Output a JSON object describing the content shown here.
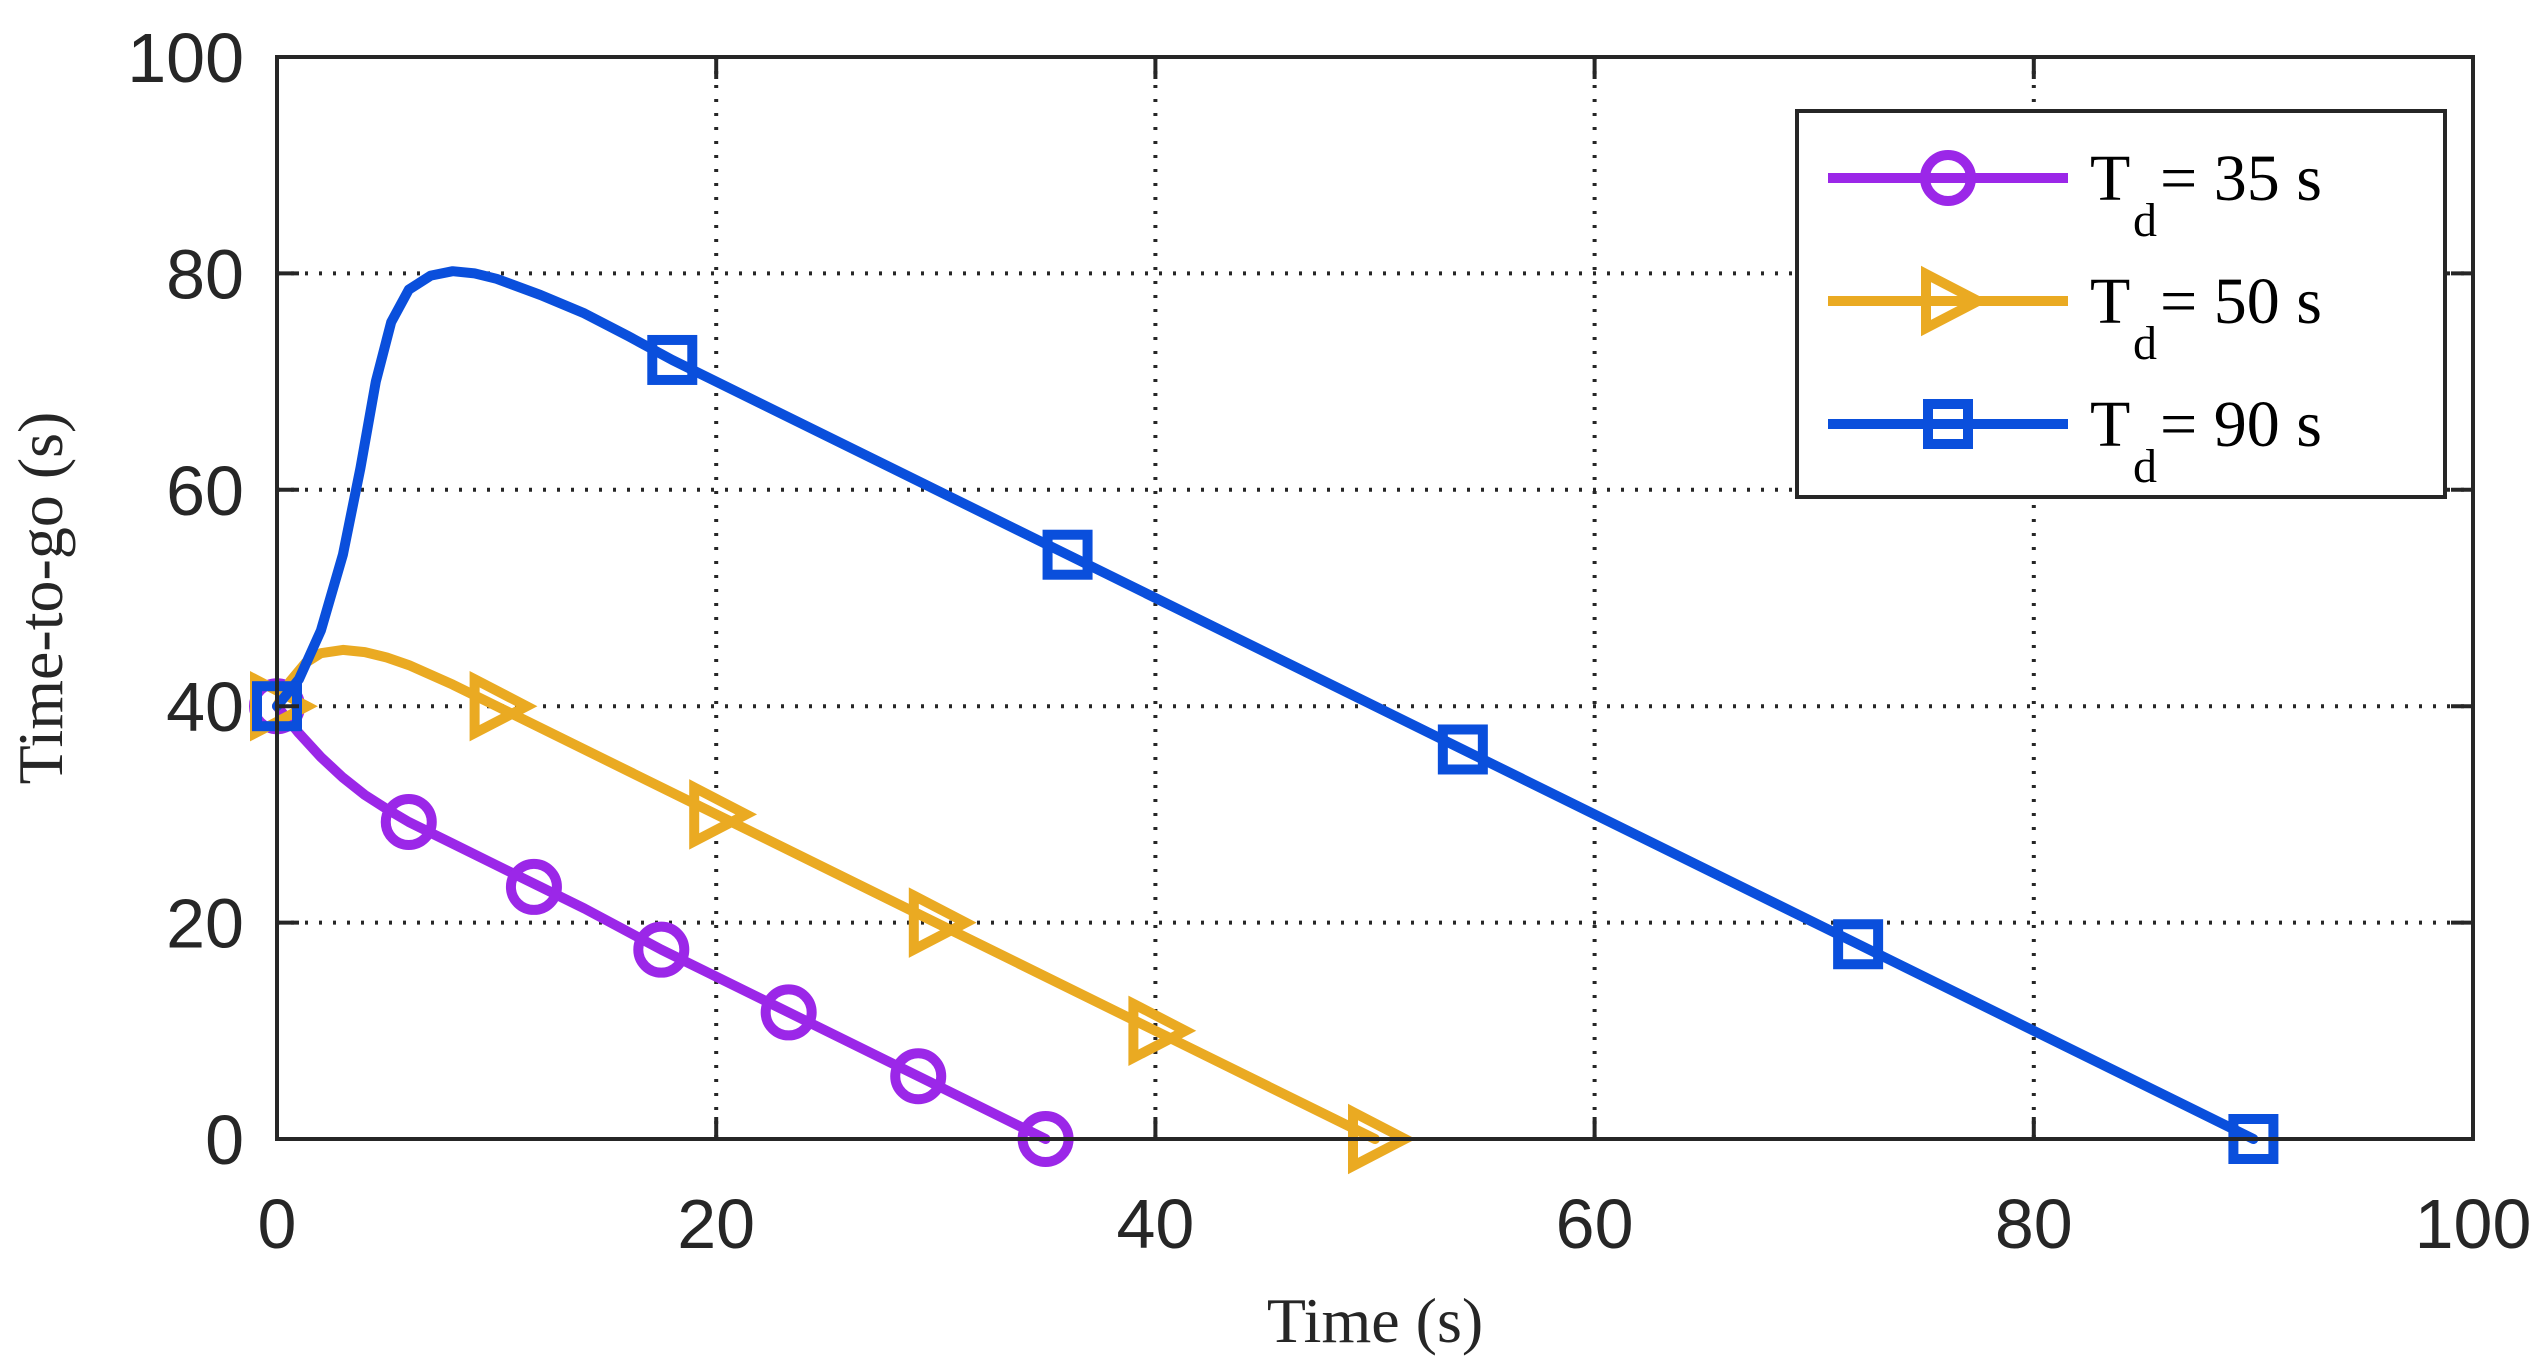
{
  "chart_data": {
    "type": "line",
    "title": "",
    "xlabel": "Time (s)",
    "ylabel": "Time-to-go (s)",
    "xlim": [
      0,
      100
    ],
    "ylim": [
      0,
      100
    ],
    "xticks": [
      0,
      20,
      40,
      60,
      80,
      100
    ],
    "yticks": [
      0,
      20,
      40,
      60,
      80,
      100
    ],
    "xtick_labels": [
      "0",
      "20",
      "40",
      "60",
      "80",
      "100"
    ],
    "ytick_labels": [
      "0",
      "20",
      "40",
      "60",
      "80",
      "100"
    ],
    "grid": true,
    "legend_position": "top-right",
    "series": [
      {
        "name": "Td = 35 s",
        "label_main": "T",
        "label_sub": "d",
        "label_rest": " = 35 s",
        "color": "#9b27e8",
        "marker": "circle",
        "line": [
          [
            0,
            40
          ],
          [
            1,
            37.5
          ],
          [
            2,
            35.3
          ],
          [
            3,
            33.4
          ],
          [
            4,
            31.8
          ],
          [
            5,
            30.5
          ],
          [
            6,
            29.3
          ],
          [
            8,
            27.3
          ],
          [
            10,
            25.3
          ],
          [
            12,
            23.3
          ],
          [
            14,
            21.3
          ],
          [
            17.5,
            17.5
          ],
          [
            23.3,
            11.7
          ],
          [
            29.2,
            5.8
          ],
          [
            35,
            0
          ]
        ],
        "markers": [
          [
            0,
            40
          ],
          [
            6,
            29.3
          ],
          [
            11.7,
            23.3
          ],
          [
            17.5,
            17.5
          ],
          [
            23.3,
            11.7
          ],
          [
            29.2,
            5.8
          ],
          [
            35,
            0
          ]
        ]
      },
      {
        "name": "Td = 50 s",
        "label_main": "T",
        "label_sub": "d",
        "label_rest": " = 50 s",
        "color": "#eaaa22",
        "marker": "triangle-right",
        "line": [
          [
            0,
            40
          ],
          [
            0.6,
            42.3
          ],
          [
            1.3,
            44
          ],
          [
            2,
            44.9
          ],
          [
            3,
            45.2
          ],
          [
            4,
            45
          ],
          [
            5,
            44.5
          ],
          [
            6,
            43.8
          ],
          [
            8,
            42
          ],
          [
            10,
            40
          ],
          [
            20,
            30
          ],
          [
            30,
            20
          ],
          [
            40,
            10
          ],
          [
            50,
            0
          ]
        ],
        "markers": [
          [
            0,
            40
          ],
          [
            10,
            40
          ],
          [
            20,
            30
          ],
          [
            30,
            20
          ],
          [
            40,
            10
          ],
          [
            50,
            0
          ]
        ]
      },
      {
        "name": "Td = 90 s",
        "label_main": "T",
        "label_sub": "d",
        "label_rest": " = 90 s",
        "color": "#0a4fdc",
        "marker": "square",
        "line": [
          [
            0,
            40
          ],
          [
            1,
            42.5
          ],
          [
            2,
            47
          ],
          [
            3,
            54
          ],
          [
            3.8,
            62
          ],
          [
            4.5,
            70
          ],
          [
            5.2,
            75.5
          ],
          [
            6,
            78.5
          ],
          [
            7,
            79.8
          ],
          [
            8,
            80.2
          ],
          [
            9,
            80
          ],
          [
            10,
            79.5
          ],
          [
            12,
            78
          ],
          [
            14,
            76.3
          ],
          [
            16,
            74.2
          ],
          [
            18,
            72
          ],
          [
            36,
            54
          ],
          [
            54,
            36
          ],
          [
            72,
            18
          ],
          [
            90,
            0
          ]
        ],
        "markers": [
          [
            0,
            40
          ],
          [
            18,
            72
          ],
          [
            36,
            54
          ],
          [
            54,
            36
          ],
          [
            72,
            18
          ],
          [
            90,
            0
          ]
        ]
      }
    ]
  }
}
